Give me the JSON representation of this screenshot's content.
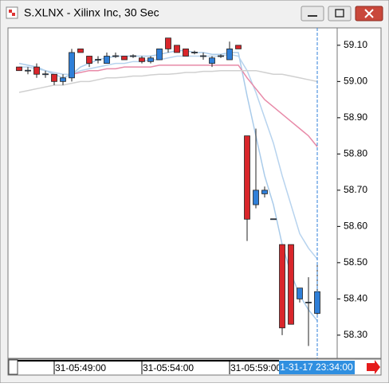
{
  "chart_data": {
    "type": "candlestick",
    "title": "S.XLNX - Xilinx Inc, 30 Sec",
    "cursor_label": "1-31-17 23:34:00",
    "categories": [
      null,
      null,
      null,
      null,
      "31-05:49:00",
      null,
      null,
      null,
      null,
      null,
      null,
      null,
      null,
      null,
      "31-05:54:00",
      null,
      null,
      null,
      null,
      null,
      null,
      null,
      null,
      null,
      "31-05:59:00",
      null,
      null,
      null,
      null,
      null,
      null,
      null,
      null,
      null,
      null
    ],
    "open": [
      59.04,
      59.03,
      59.04,
      59.02,
      59.02,
      59.0,
      59.01,
      59.09,
      59.07,
      59.06,
      59.05,
      59.07,
      59.07,
      59.07,
      59.065,
      59.055,
      59.06,
      59.12,
      59.1,
      59.09,
      59.08,
      59.07,
      59.05,
      59.07,
      59.06,
      59.1,
      58.85,
      58.66,
      58.69,
      58.62,
      58.55,
      58.55,
      58.4,
      58.39,
      58.36
    ],
    "high": [
      59.04,
      59.04,
      59.05,
      59.03,
      59.02,
      59.02,
      59.09,
      59.09,
      59.07,
      59.07,
      59.08,
      59.08,
      59.07,
      59.075,
      59.07,
      59.07,
      59.09,
      59.12,
      59.1,
      59.09,
      59.085,
      59.08,
      59.07,
      59.075,
      59.11,
      59.1,
      58.85,
      58.87,
      58.71,
      58.62,
      58.55,
      58.55,
      58.43,
      58.46,
      58.5
    ],
    "low": [
      59.03,
      59.02,
      59.01,
      59.01,
      58.99,
      58.99,
      59.0,
      59.08,
      59.04,
      59.05,
      59.05,
      59.065,
      59.06,
      59.065,
      59.05,
      59.05,
      59.06,
      59.08,
      59.08,
      59.07,
      59.075,
      59.06,
      59.04,
      59.065,
      59.06,
      59.09,
      58.56,
      58.65,
      58.68,
      58.62,
      58.3,
      58.33,
      58.39,
      58.27,
      58.35
    ],
    "close": [
      59.03,
      59.03,
      59.02,
      59.02,
      59.0,
      59.01,
      59.08,
      59.08,
      59.05,
      59.06,
      59.07,
      59.07,
      59.06,
      59.07,
      59.055,
      59.065,
      59.09,
      59.09,
      59.08,
      59.07,
      59.08,
      59.07,
      59.065,
      59.07,
      59.09,
      59.09,
      58.62,
      58.7,
      58.7,
      58.62,
      58.32,
      58.33,
      58.43,
      58.39,
      58.42
    ],
    "up_color": "#2f7fd8",
    "down_color": "#d9262b",
    "lines": [
      {
        "color": "#a9cbea",
        "values": [
          59.05,
          59.045,
          59.04,
          59.03,
          59.02,
          59.01,
          59.02,
          59.04,
          59.05,
          59.06,
          59.065,
          59.07,
          59.07,
          59.07,
          59.07,
          59.07,
          59.075,
          59.08,
          59.085,
          59.085,
          59.08,
          59.08,
          59.075,
          59.075,
          59.08,
          59.08,
          58.96,
          58.85,
          58.74,
          58.66,
          58.55,
          58.47,
          58.41,
          58.37,
          58.34
        ]
      },
      {
        "color": "#b7d3ee",
        "values": [
          59.04,
          59.04,
          59.035,
          59.03,
          59.025,
          59.02,
          59.02,
          59.03,
          59.035,
          59.04,
          59.045,
          59.05,
          59.05,
          59.055,
          59.055,
          59.06,
          59.06,
          59.065,
          59.07,
          59.07,
          59.07,
          59.07,
          59.07,
          59.07,
          59.075,
          59.07,
          59.03,
          58.97,
          58.9,
          58.83,
          58.74,
          58.66,
          58.58,
          58.54,
          58.51
        ]
      },
      {
        "color": "#e88aa8",
        "values": [
          null,
          null,
          null,
          null,
          null,
          null,
          59.02,
          59.025,
          59.03,
          59.03,
          59.035,
          59.035,
          59.04,
          59.04,
          59.04,
          59.04,
          59.045,
          59.045,
          59.045,
          59.045,
          59.045,
          59.045,
          59.045,
          59.045,
          59.045,
          59.045,
          59.01,
          58.98,
          58.95,
          58.93,
          58.91,
          58.89,
          58.87,
          58.85,
          58.82
        ]
      },
      {
        "color": "#d0d0d0",
        "values": [
          58.97,
          58.975,
          58.98,
          58.985,
          58.99,
          58.99,
          58.995,
          59.0,
          59.0,
          59.005,
          59.01,
          59.01,
          59.012,
          59.015,
          59.015,
          59.018,
          59.02,
          59.02,
          59.022,
          59.025,
          59.025,
          59.028,
          59.028,
          59.03,
          59.03,
          59.03,
          59.03,
          59.03,
          59.025,
          59.02,
          59.02,
          59.015,
          59.01,
          59.005,
          59.0
        ]
      }
    ],
    "ylim": [
      58.236,
      59.148
    ],
    "yticks": [
      {
        "value": 59.1,
        "label": "59.10"
      },
      {
        "value": 59.0,
        "label": "59.00"
      },
      {
        "value": 58.9,
        "label": "58.90"
      },
      {
        "value": 58.8,
        "label": "58.80"
      },
      {
        "value": 58.7,
        "label": "58.70"
      },
      {
        "value": 58.6,
        "label": "58.60"
      },
      {
        "value": 58.5,
        "label": "58.50"
      },
      {
        "value": 58.4,
        "label": "58.40"
      },
      {
        "value": 58.3,
        "label": "58.30"
      }
    ]
  }
}
